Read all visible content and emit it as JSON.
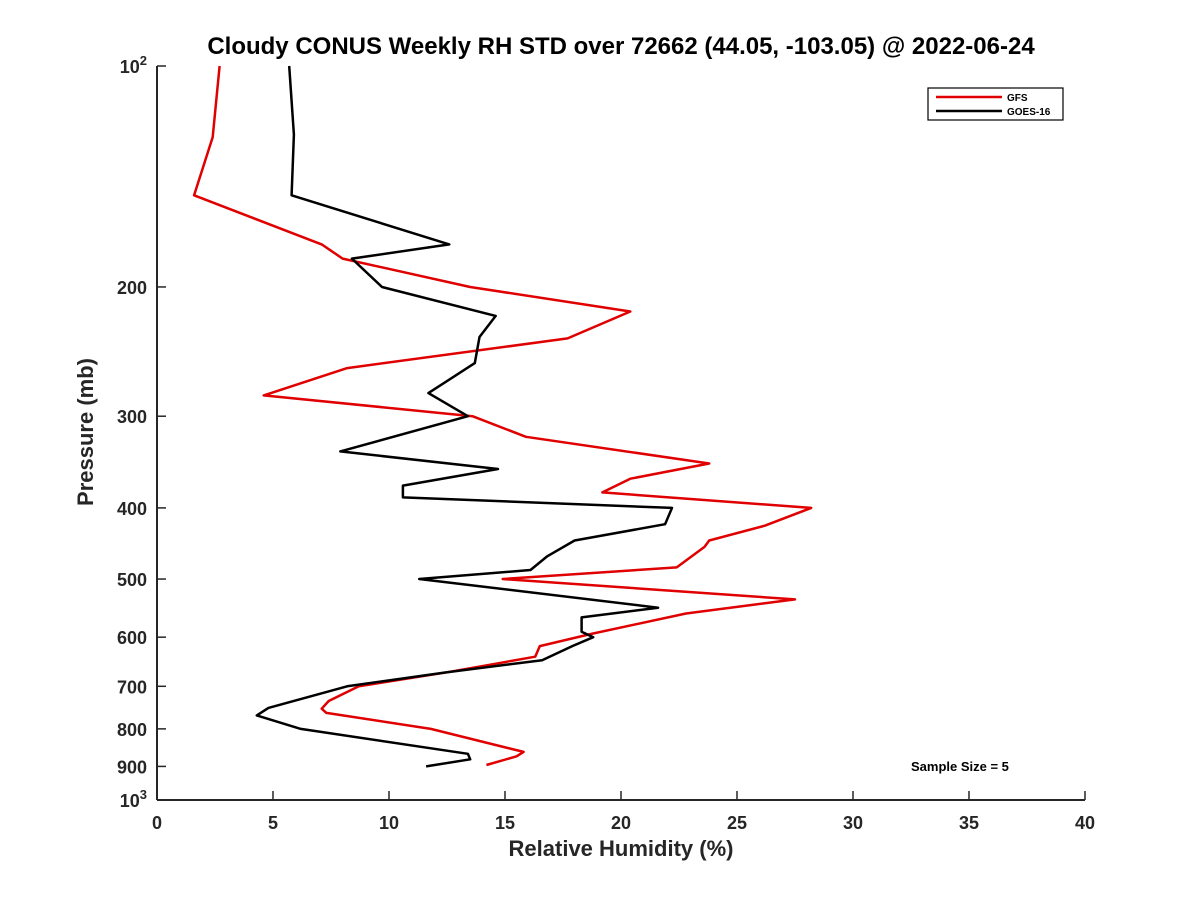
{
  "chart_data": {
    "type": "line",
    "title": "Cloudy CONUS Weekly RH STD over 72662 (44.05, -103.05) @ 2022-06-24",
    "xlabel": "Relative Humidity (%)",
    "ylabel": "Pressure (mb)",
    "xlim": [
      0,
      40
    ],
    "ylim": [
      100,
      1000
    ],
    "yscale": "log",
    "y_reversed": true,
    "x_ticks": [
      "0",
      "5",
      "10",
      "15",
      "20",
      "25",
      "30",
      "35",
      "40"
    ],
    "x_tick_values": [
      0,
      5,
      10,
      15,
      20,
      25,
      30,
      35,
      40
    ],
    "y_ticks": [
      {
        "value": 100,
        "base": "10",
        "exp": "2"
      },
      {
        "value": 200,
        "label": "200"
      },
      {
        "value": 300,
        "label": "300"
      },
      {
        "value": 400,
        "label": "400"
      },
      {
        "value": 500,
        "label": "500"
      },
      {
        "value": 600,
        "label": "600"
      },
      {
        "value": 700,
        "label": "700"
      },
      {
        "value": 800,
        "label": "800"
      },
      {
        "value": 900,
        "label": "900"
      },
      {
        "value": 1000,
        "base": "10",
        "exp": "3"
      }
    ],
    "grid": false,
    "legend_position": "top-right",
    "annotation": "Sample Size = 5",
    "series": [
      {
        "name": "GFS",
        "color": "#e00000",
        "points": [
          [
            2.7,
            100
          ],
          [
            2.4,
            125
          ],
          [
            1.6,
            150
          ],
          [
            7.1,
            175
          ],
          [
            8.0,
            183
          ],
          [
            13.5,
            200
          ],
          [
            20.4,
            216
          ],
          [
            17.7,
            235
          ],
          [
            8.2,
            258
          ],
          [
            4.6,
            281
          ],
          [
            13.6,
            300
          ],
          [
            15.9,
            320
          ],
          [
            23.8,
            348
          ],
          [
            20.4,
            365
          ],
          [
            19.2,
            381
          ],
          [
            28.2,
            400
          ],
          [
            26.2,
            423
          ],
          [
            23.8,
            443
          ],
          [
            23.6,
            452
          ],
          [
            22.4,
            482
          ],
          [
            14.9,
            500
          ],
          [
            27.5,
            533
          ],
          [
            22.8,
            557
          ],
          [
            18.7,
            594
          ],
          [
            16.5,
            617
          ],
          [
            16.3,
            638
          ],
          [
            12.5,
            670
          ],
          [
            8.7,
            700
          ],
          [
            7.4,
            733
          ],
          [
            7.1,
            751
          ],
          [
            7.3,
            761
          ],
          [
            11.8,
            800
          ],
          [
            15.8,
            860
          ],
          [
            15.5,
            872
          ],
          [
            14.2,
            896
          ]
        ]
      },
      {
        "name": "GOES-16",
        "color": "#000000",
        "points": [
          [
            5.7,
            100
          ],
          [
            5.9,
            124
          ],
          [
            5.8,
            150
          ],
          [
            12.6,
            175
          ],
          [
            8.4,
            183
          ],
          [
            9.7,
            200
          ],
          [
            14.6,
            219
          ],
          [
            13.9,
            234
          ],
          [
            13.7,
            254
          ],
          [
            11.7,
            279
          ],
          [
            13.4,
            300
          ],
          [
            7.9,
            335
          ],
          [
            14.7,
            354
          ],
          [
            10.6,
            373
          ],
          [
            10.6,
            387
          ],
          [
            22.2,
            400
          ],
          [
            21.9,
            421
          ],
          [
            18.0,
            443
          ],
          [
            16.8,
            466
          ],
          [
            16.1,
            486
          ],
          [
            11.3,
            500
          ],
          [
            21.6,
            547
          ],
          [
            18.3,
            564
          ],
          [
            18.3,
            590
          ],
          [
            18.8,
            600
          ],
          [
            17.9,
            617
          ],
          [
            16.6,
            645
          ],
          [
            12.5,
            670
          ],
          [
            8.2,
            700
          ],
          [
            4.8,
            749
          ],
          [
            4.3,
            767
          ],
          [
            6.2,
            800
          ],
          [
            13.4,
            865
          ],
          [
            13.5,
            880
          ],
          [
            11.6,
            900
          ]
        ]
      }
    ]
  }
}
